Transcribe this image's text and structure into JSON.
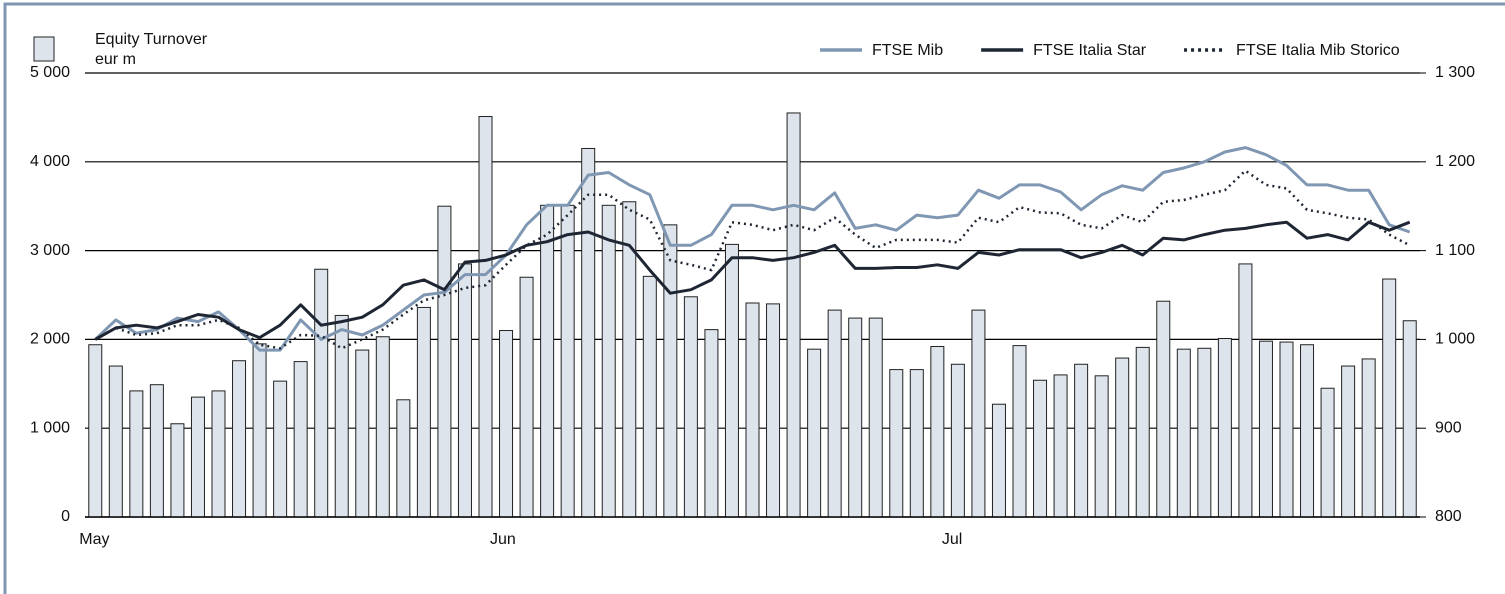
{
  "chart_data": {
    "type": "combo",
    "categories": [
      "May",
      null,
      null,
      null,
      null,
      null,
      null,
      null,
      null,
      null,
      null,
      null,
      null,
      null,
      null,
      null,
      null,
      null,
      null,
      null,
      "Jun",
      null,
      null,
      null,
      null,
      null,
      null,
      null,
      null,
      null,
      null,
      null,
      null,
      null,
      null,
      null,
      null,
      null,
      null,
      null,
      null,
      null,
      "Jul",
      null,
      null,
      null,
      null,
      null,
      null,
      null,
      null,
      null,
      null,
      null,
      null,
      null,
      null,
      null,
      null,
      null,
      null,
      null,
      null,
      null,
      null
    ],
    "y_label": "eur m",
    "series": [
      {
        "name": "Equity Turnover",
        "kind": "bar",
        "axis": "y",
        "color": "#dde4ec",
        "values": [
          1940,
          1700,
          1420,
          1490,
          1050,
          1350,
          1420,
          1760,
          1950,
          1530,
          1750,
          2790,
          2270,
          1880,
          2030,
          1320,
          2360,
          3500,
          2850,
          4510,
          2100,
          2700,
          3510,
          3510,
          4150,
          3510,
          3550,
          2710,
          3290,
          2480,
          2110,
          3070,
          2410,
          2400,
          4550,
          1890,
          2330,
          2240,
          2240,
          1660,
          1660,
          1920,
          1720,
          2330,
          1270,
          1930,
          1540,
          1600,
          1720,
          1590,
          1790,
          1910,
          2430,
          1890,
          1900,
          2010,
          2850,
          1980,
          1970,
          1940,
          1450,
          1700,
          1780,
          2680,
          2210
        ]
      },
      {
        "name": "FTSE Mib",
        "kind": "line",
        "axis": "y2",
        "color": "#7f97b2",
        "style": "solid",
        "values": [
          1000,
          1022,
          1007,
          1011,
          1024,
          1020,
          1031,
          1011,
          988,
          988,
          1022,
          1000,
          1011,
          1005,
          1016,
          1033,
          1050,
          1053,
          1073,
          1073,
          1095,
          1129,
          1151,
          1151,
          1185,
          1188,
          1174,
          1163,
          1106,
          1106,
          1118,
          1151,
          1151,
          1146,
          1151,
          1146,
          1165,
          1125,
          1129,
          1123,
          1140,
          1137,
          1140,
          1168,
          1159,
          1174,
          1174,
          1166,
          1146,
          1163,
          1173,
          1168,
          1188,
          1193,
          1200,
          1211,
          1216,
          1208,
          1196,
          1174,
          1174,
          1168,
          1168,
          1129,
          1121
        ]
      },
      {
        "name": "FTSE Italia Star",
        "kind": "line",
        "axis": "y2",
        "color": "#1f2633",
        "style": "solid",
        "values": [
          1000,
          1013,
          1016,
          1013,
          1020,
          1028,
          1025,
          1011,
          1002,
          1016,
          1039,
          1016,
          1020,
          1025,
          1039,
          1061,
          1067,
          1056,
          1087,
          1089,
          1095,
          1106,
          1110,
          1118,
          1121,
          1112,
          1106,
          1078,
          1052,
          1056,
          1067,
          1092,
          1092,
          1089,
          1092,
          1098,
          1106,
          1080,
          1080,
          1081,
          1081,
          1084,
          1080,
          1098,
          1095,
          1101,
          1101,
          1101,
          1092,
          1098,
          1106,
          1095,
          1114,
          1112,
          1118,
          1123,
          1125,
          1129,
          1132,
          1114,
          1118,
          1112,
          1132,
          1123,
          1132
        ]
      },
      {
        "name": "FTSE Italia Mib Storico",
        "kind": "line",
        "axis": "y2",
        "color": "#1f2633",
        "style": "dotted",
        "values": [
          1000,
          1013,
          1005,
          1007,
          1016,
          1016,
          1022,
          1013,
          994,
          990,
          1005,
          1004,
          990,
          1000,
          1011,
          1028,
          1044,
          1050,
          1058,
          1061,
          1084,
          1106,
          1118,
          1140,
          1163,
          1163,
          1146,
          1135,
          1089,
          1084,
          1078,
          1132,
          1129,
          1123,
          1129,
          1123,
          1137,
          1118,
          1103,
          1112,
          1112,
          1112,
          1109,
          1137,
          1132,
          1149,
          1143,
          1142,
          1129,
          1125,
          1140,
          1132,
          1155,
          1157,
          1163,
          1168,
          1190,
          1174,
          1170,
          1146,
          1142,
          1137,
          1135,
          1118,
          1106
        ]
      }
    ],
    "ylim": [
      0,
      5000
    ],
    "yticks": [
      0,
      {
        "value": 1000,
        "label": "1 000"
      },
      {
        "value": 2000,
        "label": "2 000"
      },
      {
        "value": 3000,
        "label": "3 000"
      },
      {
        "value": 4000,
        "label": "4 000"
      },
      {
        "value": 5000,
        "label": "5 000"
      }
    ],
    "y2lim": [
      800,
      1300
    ],
    "y2ticks": [
      800,
      900,
      {
        "value": 1000,
        "label": "1 000"
      },
      {
        "value": 1100,
        "label": "1 100"
      },
      {
        "value": 1200,
        "label": "1 200"
      },
      {
        "value": 1300,
        "label": "1 300"
      }
    ],
    "grid": true
  }
}
